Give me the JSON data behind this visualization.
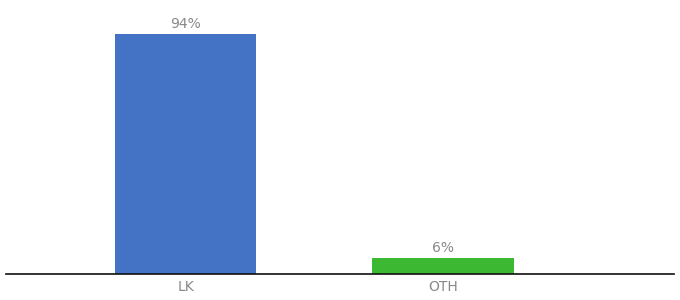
{
  "categories": [
    "LK",
    "OTH"
  ],
  "values": [
    94,
    6
  ],
  "bar_colors": [
    "#4472c4",
    "#3db832"
  ],
  "label_texts": [
    "94%",
    "6%"
  ],
  "background_color": "#ffffff",
  "ylim": [
    0,
    105
  ],
  "x_positions": [
    1,
    2
  ],
  "xlim": [
    0.3,
    2.9
  ],
  "bar_width": 0.55,
  "figsize": [
    6.8,
    3.0
  ],
  "dpi": 100,
  "tick_fontsize": 10,
  "label_fontsize": 10,
  "label_color": "#888888",
  "tick_color": "#888888",
  "axis_line_color": "#111111"
}
